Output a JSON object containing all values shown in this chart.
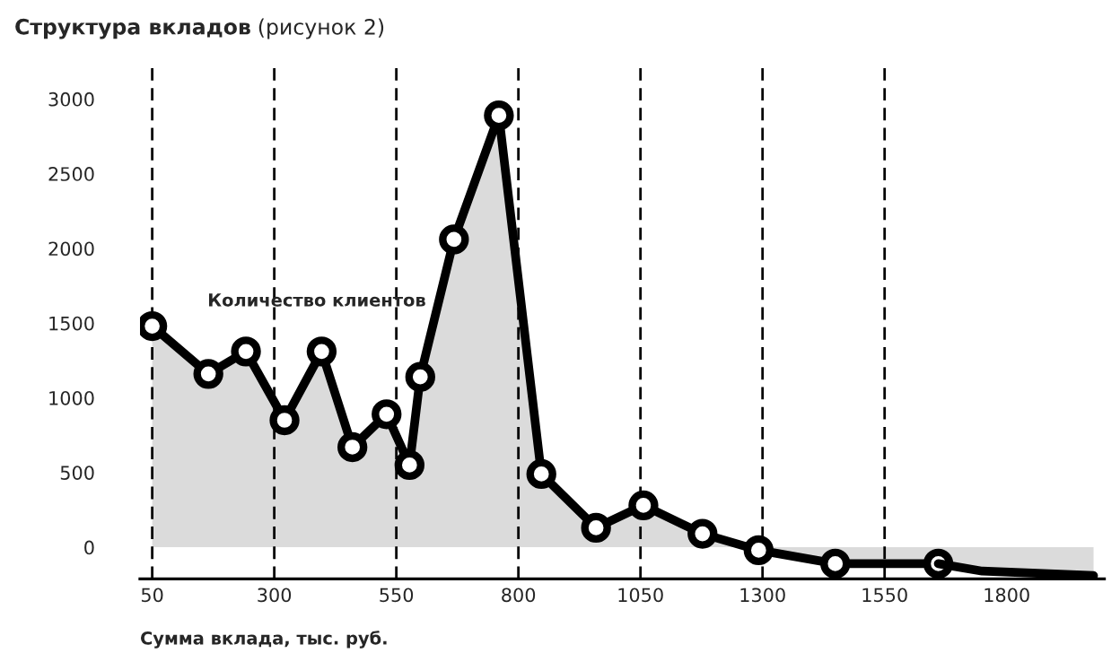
{
  "chart_data": {
    "type": "area",
    "title": "Структура вкладов",
    "subtitle": "(рисунок 2)",
    "xlabel": "Сумма вклада, тыс. руб.",
    "xlim": [
      25,
      2000
    ],
    "xticks": [
      50,
      300,
      550,
      800,
      1050,
      1300,
      1550,
      1800
    ],
    "ylim": [
      -212,
      3230
    ],
    "yticks": [
      0,
      500,
      1000,
      1500,
      2000,
      2500,
      3000
    ],
    "grid": false,
    "legend": false,
    "ref_lines": [
      {
        "axis": "x",
        "value": 50,
        "color": "#000000",
        "line_style": "dashed"
      },
      {
        "axis": "x",
        "value": 300,
        "color": "#000000",
        "line_style": "dashed"
      },
      {
        "axis": "x",
        "value": 550,
        "color": "#000000",
        "line_style": "dashed"
      },
      {
        "axis": "x",
        "value": 800,
        "color": "#000000",
        "line_style": "dashed"
      },
      {
        "axis": "x",
        "value": 1050,
        "color": "#000000",
        "line_style": "dashed"
      },
      {
        "axis": "x",
        "value": 1300,
        "color": "#000000",
        "line_style": "dashed"
      },
      {
        "axis": "x",
        "value": 1550,
        "color": "#000000",
        "line_style": "dashed"
      }
    ],
    "series": [
      {
        "name": "Количество клиентов",
        "type": "area",
        "color": "#000000",
        "marker": "circle",
        "x": [
          50,
          165,
          242,
          321,
          397,
          460,
          530,
          577,
          599,
          668,
          760,
          847,
          959,
          1056,
          1177,
          1292,
          1449,
          1660
        ],
        "values": [
          1480,
          1160,
          1310,
          850,
          1310,
          670,
          890,
          550,
          1140,
          2060,
          2890,
          490,
          130,
          280,
          90,
          -20,
          -110,
          -110
        ]
      },
      {
        "type": "area",
        "color": "#000000",
        "marker": "none",
        "x": [
          1660,
          1750,
          1978
        ],
        "values": [
          -110,
          -160,
          -190
        ]
      }
    ]
  }
}
